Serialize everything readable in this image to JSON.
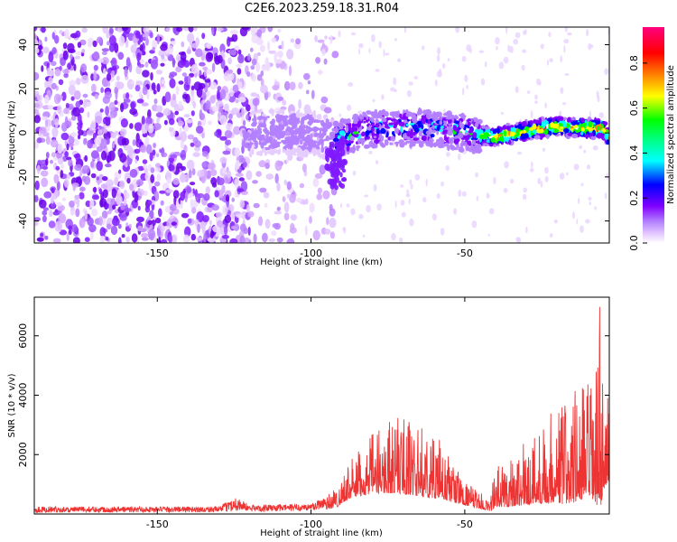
{
  "figure": {
    "title": "C2E6.2023.259.18.31.R04"
  },
  "colors": {
    "snr_line": "#ee3333",
    "frame": "#000000",
    "background": "#ffffff"
  },
  "chart_data": [
    {
      "type": "heatmap",
      "title": "",
      "xlabel": "Height of straight line (km)",
      "ylabel": "Frequency (Hz)",
      "xlim": [
        -190,
        -3
      ],
      "ylim": [
        -50,
        48
      ],
      "xticks": [
        -150,
        -100,
        -50
      ],
      "yticks": [
        -40,
        -20,
        0,
        20,
        40
      ],
      "colorbar": {
        "label": "Normalized spectral amplitude",
        "range": [
          0,
          0.96
        ],
        "ticks": [
          0.0,
          0.2,
          0.4,
          0.6,
          0.8
        ],
        "colormap": [
          "#ffffff",
          "#e6ccff",
          "#b380ff",
          "#8000ff",
          "#0000ff",
          "#00ffff",
          "#00ff00",
          "#ffff00",
          "#ff8000",
          "#ff0000",
          "#ff0080"
        ]
      },
      "regions": [
        {
          "x": [
            -190,
            -120
          ],
          "y": [
            -50,
            48
          ],
          "amplitude": 0.1,
          "pattern": "broadband noise"
        },
        {
          "x": [
            -120,
            -92
          ],
          "y": [
            -50,
            48
          ],
          "amplitude": 0.1,
          "pattern": "fading broadband noise"
        },
        {
          "x": [
            -120,
            -92
          ],
          "y": [
            -10,
            10
          ],
          "amplitude": 0.18,
          "pattern": "emerging signal"
        },
        {
          "x": [
            -92,
            -45
          ],
          "y": [
            -8,
            10
          ],
          "amplitude": 0.35,
          "pattern": "signal band"
        },
        {
          "x": [
            -45,
            -3
          ],
          "y": [
            -5,
            7
          ],
          "amplitude": 0.7,
          "pattern": "strong narrow signal"
        }
      ],
      "ridge_center": {
        "x": [
          -120,
          -100,
          -92,
          -80,
          -60,
          -45,
          -40,
          -30,
          -20,
          -10,
          -5,
          -3
        ],
        "y": [
          0,
          0,
          -3,
          2,
          2,
          -1,
          -2,
          1,
          3,
          2,
          2,
          -3
        ]
      }
    },
    {
      "type": "line",
      "title": "",
      "xlabel": "Height of straight line (km)",
      "ylabel": "SNR (10 * v/v)",
      "xlim": [
        -190,
        -3
      ],
      "ylim": [
        0,
        7300
      ],
      "xticks": [
        -150,
        -100,
        -50
      ],
      "yticks": [
        2000,
        4000,
        6000
      ],
      "series": [
        {
          "name": "",
          "envelope": {
            "x": [
              -190,
              -130,
              -124,
              -120,
              -100,
              -92,
              -88,
              -80,
              -72,
              -65,
              -58,
              -50,
              -46,
              -42,
              -40,
              -30,
              -20,
              -18,
              -10,
              -7,
              -6,
              -5,
              -3
            ],
            "max": [
              250,
              250,
              600,
              300,
              350,
              900,
              1700,
              2700,
              3500,
              3000,
              2500,
              1100,
              800,
              500,
              1600,
              2500,
              3800,
              4100,
              4600,
              5000,
              7300,
              4200,
              3800
            ],
            "min": [
              50,
              60,
              100,
              80,
              100,
              200,
              500,
              700,
              700,
              600,
              500,
              300,
              200,
              100,
              200,
              300,
              400,
              300,
              500,
              200,
              100,
              800,
              1200
            ]
          }
        }
      ]
    }
  ]
}
